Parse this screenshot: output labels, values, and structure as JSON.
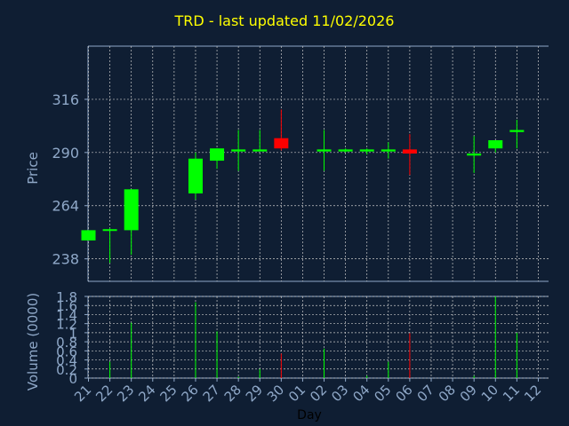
{
  "title": "TRD - last updated 11/02/2026",
  "colors": {
    "background": "#0f1e33",
    "axis_text": "#8fa8c8",
    "title": "#ffff00",
    "up": "#00ff00",
    "down": "#ff0000",
    "grid": "#c8c8c8"
  },
  "chart_data": [
    {
      "type": "candlestick",
      "ylabel": "Price",
      "ylim": [
        227,
        342
      ],
      "yticks": [
        238,
        264,
        290,
        316
      ],
      "grid": true,
      "candles": [
        {
          "day": "21",
          "open": 247,
          "close": 252,
          "high": 252,
          "low": 247
        },
        {
          "day": "22",
          "open": 252,
          "close": 252.5,
          "high": 253,
          "low": 236
        },
        {
          "day": "23",
          "open": 252,
          "close": 272,
          "high": 272,
          "low": 240
        },
        {
          "day": "26",
          "open": 270,
          "close": 287,
          "high": 290,
          "low": 267
        },
        {
          "day": "27",
          "open": 286,
          "close": 292,
          "high": 292,
          "low": 282
        },
        {
          "day": "28",
          "open": 290.5,
          "close": 291.5,
          "high": 301,
          "low": 281
        },
        {
          "day": "29",
          "open": 290.5,
          "close": 291.5,
          "high": 301,
          "low": 291
        },
        {
          "day": "30",
          "open": 297,
          "close": 292,
          "high": 311,
          "low": 291
        },
        {
          "day": "02",
          "open": 290.5,
          "close": 291.5,
          "high": 301,
          "low": 281
        },
        {
          "day": "03",
          "open": 290.5,
          "close": 291.5,
          "high": 292,
          "low": 290
        },
        {
          "day": "04",
          "open": 290.5,
          "close": 291.5,
          "high": 292,
          "low": 289
        },
        {
          "day": "05",
          "open": 290.5,
          "close": 291.5,
          "high": 295,
          "low": 287
        },
        {
          "day": "06",
          "open": 291.5,
          "close": 289.5,
          "high": 299,
          "low": 279
        },
        {
          "day": "09",
          "open": 288.5,
          "close": 289.5,
          "high": 298,
          "low": 280
        },
        {
          "day": "10",
          "open": 292,
          "close": 296,
          "high": 296,
          "low": 290
        },
        {
          "day": "11",
          "open": 300,
          "close": 301,
          "high": 306,
          "low": 292
        }
      ]
    },
    {
      "type": "bar",
      "ylabel": "Volume (0000)",
      "xlabel": "Day",
      "ylim": [
        0,
        1.8
      ],
      "yticks": [
        "0",
        "0.2",
        "0.4",
        "0.6",
        "0.8",
        "1",
        "1.2",
        "1.4",
        "1.6",
        "1.8"
      ],
      "grid": true,
      "categories": [
        "21",
        "22",
        "23",
        "24",
        "25",
        "26",
        "27",
        "28",
        "29",
        "30",
        "01",
        "02",
        "03",
        "04",
        "05",
        "06",
        "07",
        "08",
        "09",
        "10",
        "11",
        "12"
      ],
      "values": [
        0,
        0.36,
        1.22,
        0,
        0,
        1.67,
        1.03,
        0.03,
        0.2,
        0.54,
        0,
        0.65,
        0,
        0.05,
        0.36,
        0.99,
        0,
        0,
        0.05,
        1.8,
        1.0,
        0
      ],
      "bar_colors": [
        "up",
        "up",
        "up",
        "up",
        "up",
        "up",
        "up",
        "up",
        "up",
        "down",
        "up",
        "up",
        "up",
        "up",
        "up",
        "down",
        "up",
        "up",
        "up",
        "up",
        "up",
        "up"
      ]
    }
  ]
}
